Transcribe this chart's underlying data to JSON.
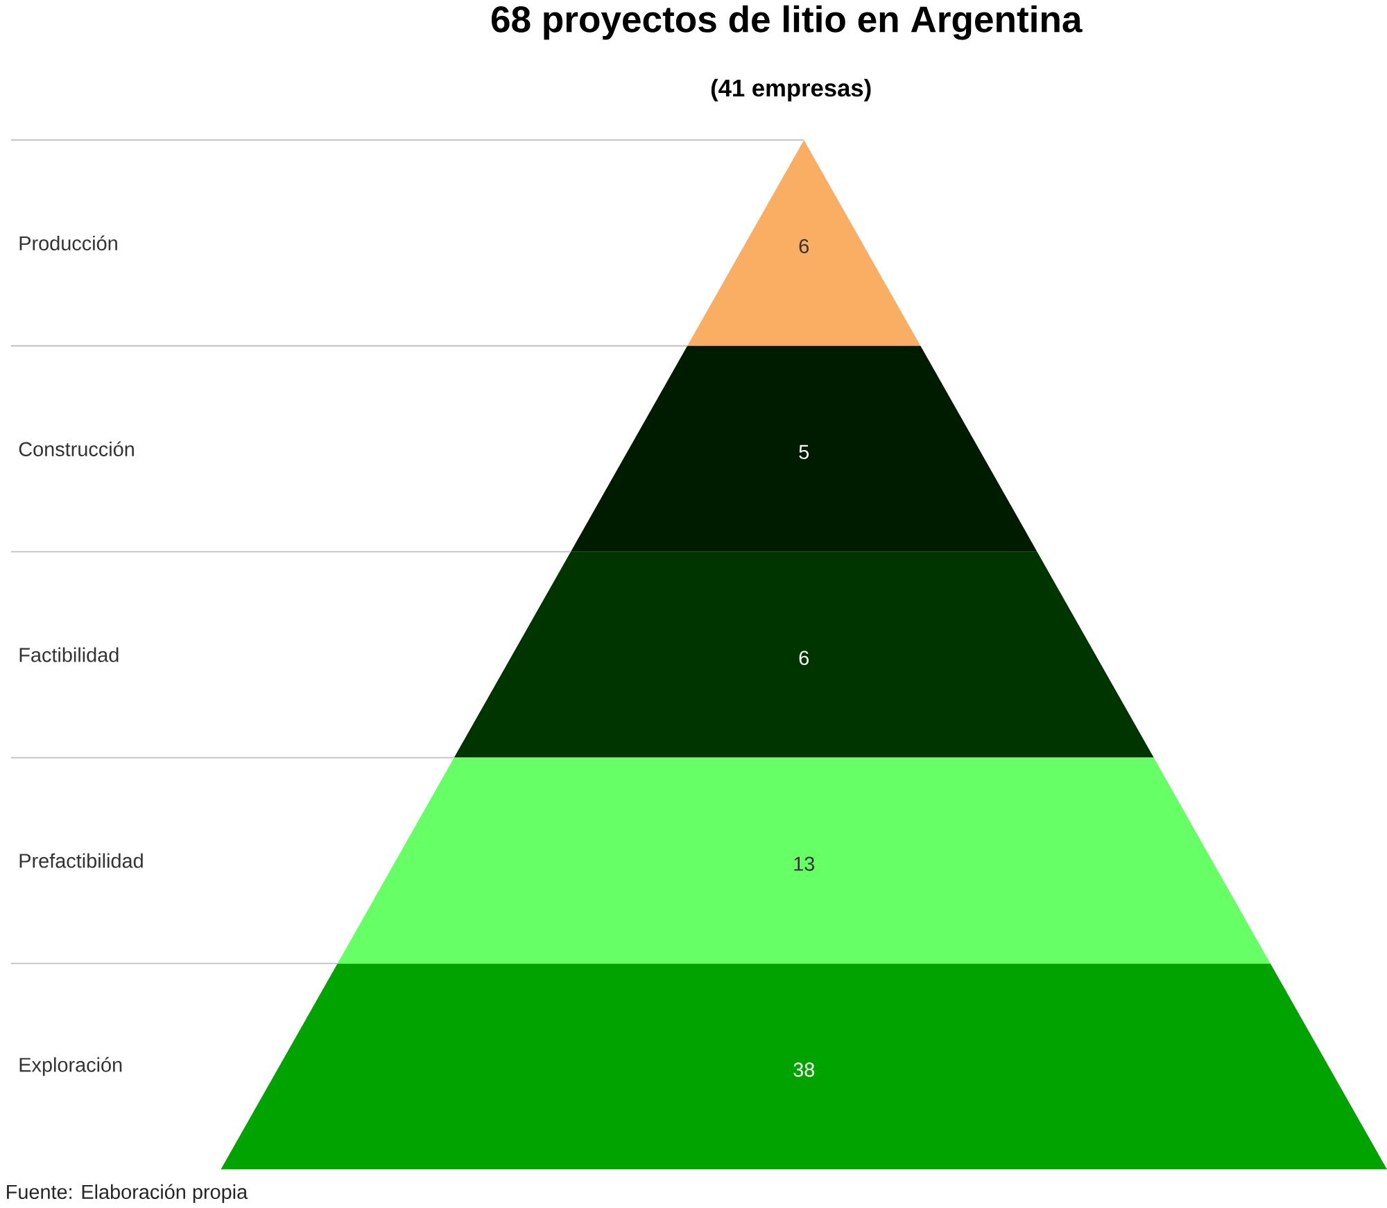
{
  "chart_data": {
    "type": "other",
    "title": "68 proyectos de litio en Argentina",
    "subtitle": "(41 empresas)",
    "categories": [
      "Producción",
      "Construcción",
      "Factibilidad",
      "Prefactibilidad",
      "Exploración"
    ],
    "values": [
      6,
      5,
      6,
      13,
      38
    ],
    "colors": [
      "#f9ae63",
      "#001c00",
      "#003500",
      "#66ff66",
      "#00a300"
    ],
    "data_labels": true,
    "annotations": [
      "Fuente: Elaboración propia"
    ]
  }
}
